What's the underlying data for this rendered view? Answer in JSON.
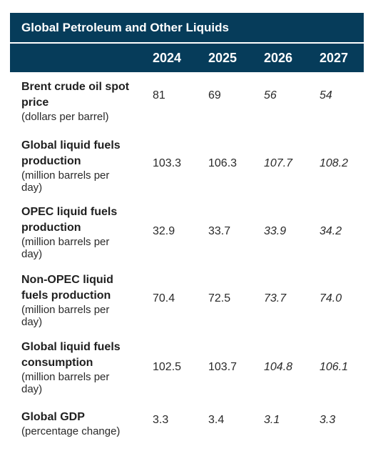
{
  "title": "Global Petroleum and Other Liquids",
  "years": [
    "2024",
    "2025",
    "2026",
    "2027"
  ],
  "rows": [
    {
      "label": "Brent crude oil spot price",
      "unit": "(dollars per barrel)",
      "values": [
        "81",
        "69",
        "56",
        "54"
      ]
    },
    {
      "label": "Global liquid fuels production",
      "unit": "(million barrels per day)",
      "values": [
        "103.3",
        "106.3",
        "107.7",
        "108.2"
      ]
    },
    {
      "label": "OPEC liquid fuels production",
      "unit": "(million barrels per day)",
      "values": [
        "32.9",
        "33.7",
        "33.9",
        "34.2"
      ]
    },
    {
      "label": "Non-OPEC liquid fuels production",
      "unit": "(million barrels per day)",
      "values": [
        "70.4",
        "72.5",
        "73.7",
        "74.0"
      ]
    },
    {
      "label": "Global liquid fuels consumption",
      "unit": "(million barrels per day)",
      "values": [
        "102.5",
        "103.7",
        "104.8",
        "106.1"
      ]
    },
    {
      "label": "Global GDP",
      "unit": "(percentage change)",
      "values": [
        "3.3",
        "3.4",
        "3.1",
        "3.3"
      ]
    }
  ],
  "colors": {
    "header_bg": "#063c5a",
    "header_text": "#ffffff"
  }
}
